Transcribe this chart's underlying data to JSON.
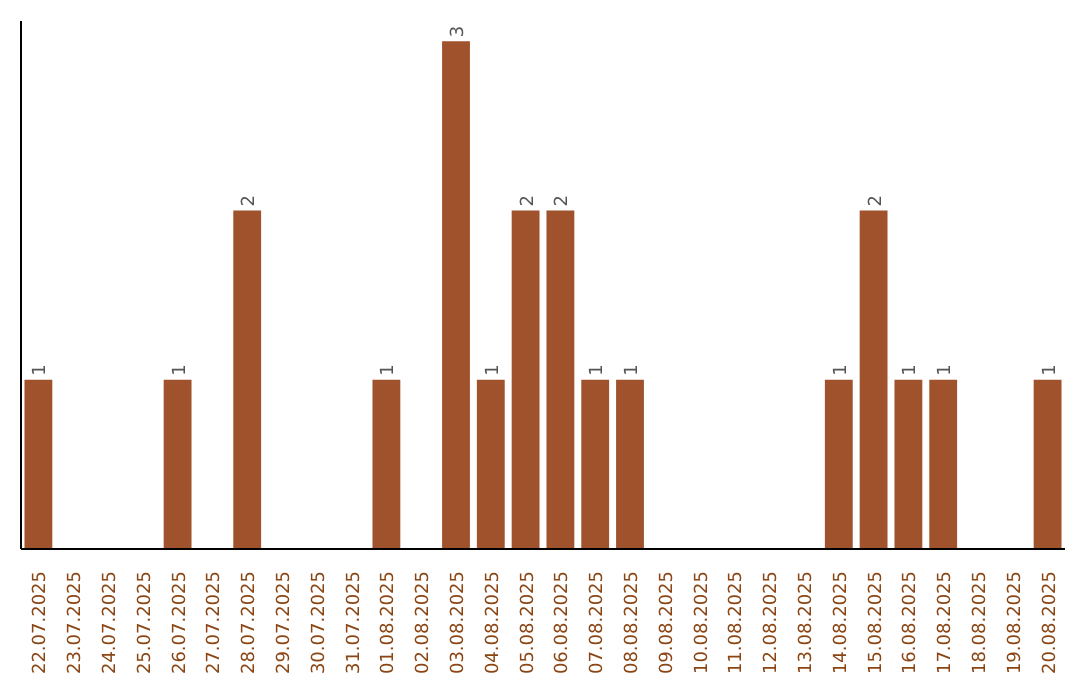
{
  "chart_data": {
    "type": "bar",
    "categories": [
      "22.07.2025",
      "23.07.2025",
      "24.07.2025",
      "25.07.2025",
      "26.07.2025",
      "27.07.2025",
      "28.07.2025",
      "29.07.2025",
      "30.07.2025",
      "31.07.2025",
      "01.08.2025",
      "02.08.2025",
      "03.08.2025",
      "04.08.2025",
      "05.08.2025",
      "06.08.2025",
      "07.08.2025",
      "08.08.2025",
      "09.08.2025",
      "10.08.2025",
      "11.08.2025",
      "12.08.2025",
      "13.08.2025",
      "14.08.2025",
      "15.08.2025",
      "16.08.2025",
      "17.08.2025",
      "18.08.2025",
      "19.08.2025",
      "20.08.2025"
    ],
    "values": [
      1,
      0,
      0,
      0,
      1,
      0,
      2,
      0,
      0,
      0,
      1,
      0,
      3,
      1,
      2,
      2,
      1,
      1,
      0,
      0,
      0,
      0,
      0,
      1,
      2,
      1,
      1,
      0,
      0,
      1
    ],
    "value_labels": [
      "1",
      null,
      null,
      null,
      "1",
      null,
      "2",
      null,
      null,
      null,
      "1",
      null,
      "3",
      "1",
      "2",
      "2",
      "1",
      "1",
      null,
      null,
      null,
      null,
      null,
      "1",
      "2",
      "1",
      "1",
      null,
      null,
      "1"
    ],
    "color": "#a0522d",
    "tick_labels": "x"
  }
}
